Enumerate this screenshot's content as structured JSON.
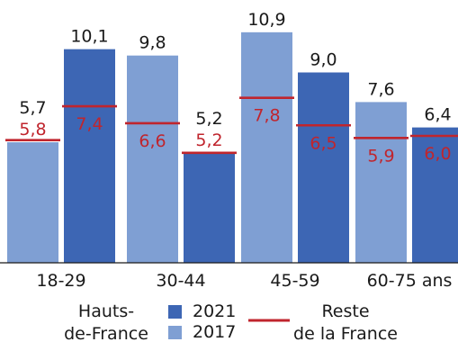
{
  "chart_data": {
    "type": "bar",
    "categories": [
      "18-29",
      "30-44",
      "45-59",
      "60-75 ans"
    ],
    "series": [
      {
        "name": "2017",
        "values": [
          5.7,
          9.8,
          10.9,
          7.6
        ],
        "rest_of_france": [
          5.8,
          6.6,
          7.8,
          5.9
        ]
      },
      {
        "name": "2021",
        "values": [
          10.1,
          5.2,
          9.0,
          6.4
        ],
        "rest_of_france": [
          7.4,
          5.2,
          6.5,
          6.0
        ]
      }
    ],
    "value_labels": {
      "2017": [
        "5,7",
        "9,8",
        "10,9",
        "7,6"
      ],
      "2021": [
        "10,1",
        "5,2",
        "9,0",
        "6,4"
      ]
    },
    "rest_labels": {
      "2017": [
        "5,8",
        "6,6",
        "7,8",
        "5,9"
      ],
      "2021": [
        "7,4",
        "5,2",
        "6,5",
        "6,0"
      ]
    },
    "ylim": [
      0,
      12
    ],
    "legend": {
      "region_label_line1": "Hauts-",
      "region_label_line2": "de-France",
      "year_2021": "2021",
      "year_2017": "2017",
      "rest_line1": "Reste",
      "rest_line2": "de la France"
    },
    "colors": {
      "bar_2017": "#7f9fd3",
      "bar_2021": "#3d66b4",
      "rest_line": "#c0252d",
      "rest_text": "#c0252d",
      "value_text": "#1a1a1a",
      "axis": "#1a1a1a"
    }
  }
}
